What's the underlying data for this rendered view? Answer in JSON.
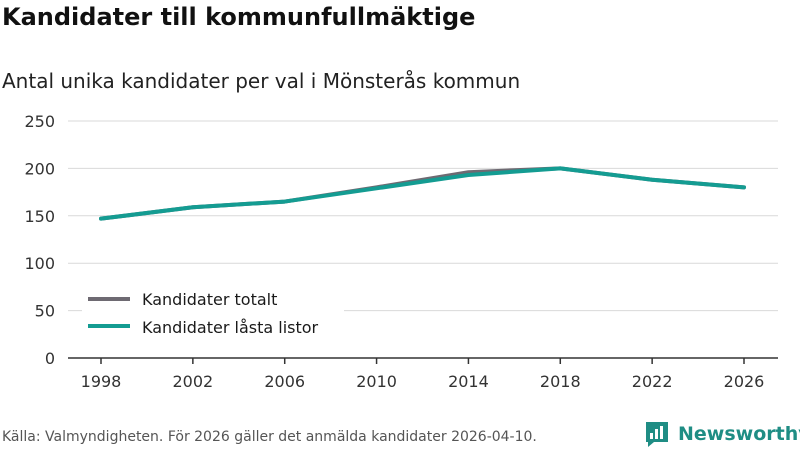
{
  "header": {
    "title": "Kandidater till kommunfullmäktige",
    "subtitle": "Antal unika kandidater per val i Mönsterås kommun"
  },
  "footer": {
    "source": "Källa: Valmyndigheten. För 2026 gäller det anmälda kandidater 2026-04-10.",
    "brand": "Newsworthy"
  },
  "colors": {
    "total": "#6e6a72",
    "locked": "#149c92",
    "grid": "#d9d9d9",
    "axis": "#333333",
    "brand": "#1f8d84"
  },
  "chart_data": {
    "type": "line",
    "title": "Antal unika kandidater per val i Mönsterås kommun",
    "xlabel": "",
    "ylabel": "",
    "ylim": [
      0,
      250
    ],
    "yticks": [
      0,
      50,
      100,
      150,
      200,
      250
    ],
    "x": [
      1998,
      2002,
      2006,
      2010,
      2014,
      2018,
      2022,
      2026
    ],
    "series": [
      {
        "name": "Kandidater totalt",
        "values": [
          147,
          159,
          165,
          180,
          196,
          200,
          188,
          180
        ]
      },
      {
        "name": "Kandidater låsta listor",
        "values": [
          147,
          159,
          165,
          179,
          193,
          200,
          188,
          180
        ]
      }
    ],
    "legend_position": "bottom-left",
    "grid": true
  }
}
